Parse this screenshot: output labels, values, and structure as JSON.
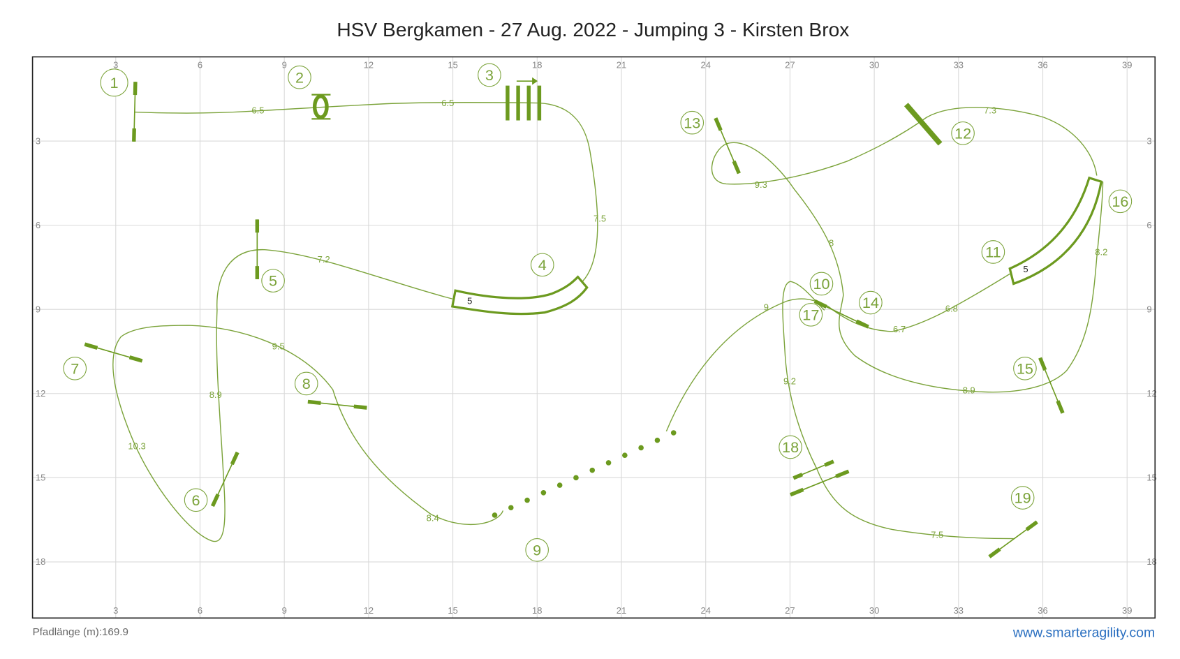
{
  "header": {
    "title": "HSV Bergkamen - 27 Aug. 2022 - Jumping 3 - Kirsten Brox"
  },
  "axes": {
    "xticks": [
      3,
      6,
      9,
      12,
      15,
      18,
      21,
      24,
      27,
      30,
      33,
      36,
      39
    ],
    "yticks": [
      3,
      6,
      9,
      12,
      15,
      18
    ]
  },
  "obstacles": [
    "1",
    "2",
    "3",
    "4",
    "5",
    "6",
    "7",
    "8",
    "9",
    "10",
    "11",
    "12",
    "13",
    "14",
    "15",
    "16",
    "17",
    "18",
    "19"
  ],
  "distances": [
    "6.5",
    "6.5",
    "7.5",
    "7.2",
    "8.9",
    "10.3",
    "9.5",
    "8.4",
    "9",
    "9.2",
    "8",
    "9.3",
    "7.3",
    "8.2",
    "6.8",
    "6.7",
    "8.9",
    "7.5"
  ],
  "tunnels": [
    "5",
    "5"
  ],
  "footer": {
    "path_length": "Pfadlänge (m):169.9",
    "website": "www.smarteragility.com"
  }
}
